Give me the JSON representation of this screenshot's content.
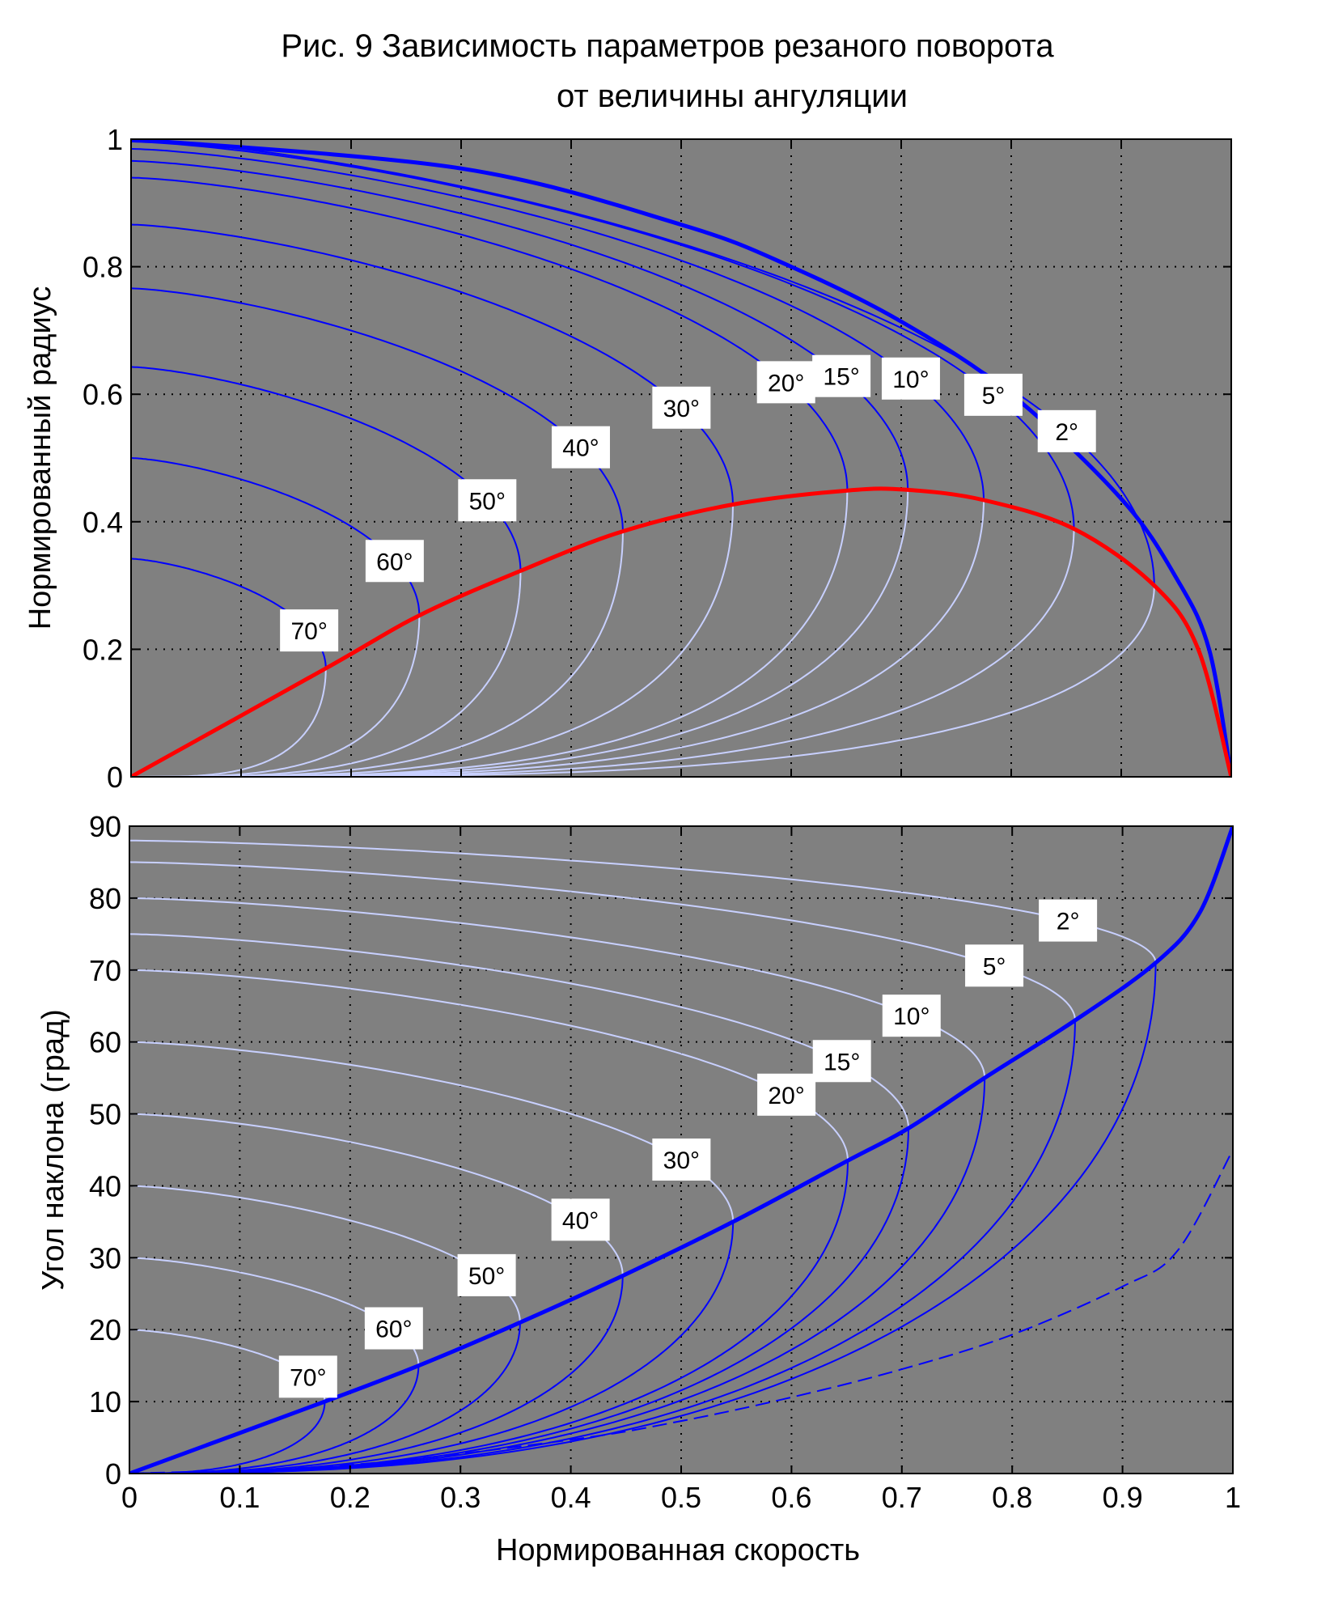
{
  "figure": {
    "title_lines": [
      "Рис. 9  Зависимость параметров резаного поворота",
      "от величины ангуляции"
    ],
    "xlabel": "Нормированная скорость"
  },
  "colors": {
    "plot_background": "#808080",
    "angulation_curve": "#0000ff",
    "sharpness_curve": "#c8d0ff",
    "envelope_blue": "#0000ff",
    "envelope_red": "#ff0000",
    "grid": "#000000",
    "label_box": "#ffffff"
  },
  "chart_data": [
    {
      "type": "line",
      "ylabel": "Нормированный радиус",
      "xlim": [
        0,
        1
      ],
      "ylim": [
        0,
        1
      ],
      "xticks": [
        "0",
        "0.1",
        "0.2",
        "0.3",
        "0.4",
        "0.5",
        "0.6",
        "0.7",
        "0.8",
        "0.9",
        "1"
      ],
      "yticks": [
        "0",
        "0.2",
        "0.4",
        "0.6",
        "0.8",
        "1"
      ],
      "grid": true,
      "angulation_labels": [
        "2°",
        "5°",
        "10°",
        "15°",
        "20°",
        "30°",
        "40°",
        "50°",
        "60°",
        "70°"
      ],
      "angulation_values_deg": [
        2,
        5,
        10,
        15,
        20,
        30,
        40,
        50,
        60,
        70
      ],
      "series": [
        {
          "kind": "envelope",
          "color": "#0000ff",
          "points": [
            [
              0,
              1
            ],
            [
              0.3,
              0.954
            ],
            [
              0.5,
              0.866
            ],
            [
              0.6,
              0.8
            ],
            [
              0.7,
              0.714
            ],
            [
              0.8,
              0.6
            ],
            [
              0.9,
              0.436
            ],
            [
              0.95,
              0.312
            ],
            [
              0.98,
              0.199
            ],
            [
              1,
              0
            ]
          ]
        },
        {
          "kind": "optimum",
          "color": "#ff0000",
          "points": [
            [
              0,
              0
            ],
            [
              0.177,
              0.17
            ],
            [
              0.262,
              0.253
            ],
            [
              0.354,
              0.323
            ],
            [
              0.447,
              0.385
            ],
            [
              0.547,
              0.427
            ],
            [
              0.651,
              0.449
            ],
            [
              0.706,
              0.45
            ],
            [
              0.775,
              0.434
            ],
            [
              0.857,
              0.389
            ],
            [
              0.93,
              0.3
            ],
            [
              0.97,
              0.2
            ],
            [
              1,
              0
            ]
          ]
        }
      ]
    },
    {
      "type": "line",
      "ylabel": "Угол наклона (град)",
      "xlim": [
        0,
        1
      ],
      "ylim": [
        0,
        90
      ],
      "xticks": [
        "0",
        "0.1",
        "0.2",
        "0.3",
        "0.4",
        "0.5",
        "0.6",
        "0.7",
        "0.8",
        "0.9",
        "1"
      ],
      "yticks": [
        "0",
        "10",
        "20",
        "30",
        "40",
        "50",
        "60",
        "70",
        "80",
        "90"
      ],
      "grid": true,
      "angulation_labels": [
        "2°",
        "5°",
        "10°",
        "15°",
        "20°",
        "30°",
        "40°",
        "50°",
        "60°",
        "70°"
      ],
      "angulation_values_deg": [
        2,
        5,
        10,
        15,
        20,
        30,
        40,
        50,
        60,
        70
      ],
      "series": [
        {
          "kind": "optimum",
          "color": "#0000ff",
          "points": [
            [
              0,
              0
            ],
            [
              0.177,
              10
            ],
            [
              0.262,
              15
            ],
            [
              0.354,
              21
            ],
            [
              0.447,
              27.5
            ],
            [
              0.547,
              35
            ],
            [
              0.651,
              43.5
            ],
            [
              0.706,
              48
            ],
            [
              0.775,
              55
            ],
            [
              0.857,
              63
            ],
            [
              0.93,
              71
            ],
            [
              0.97,
              78
            ],
            [
              1,
              90
            ]
          ]
        },
        {
          "kind": "dashed-envelope",
          "color": "#0000ff",
          "points": [
            [
              0,
              0
            ],
            [
              0.2,
              1.2
            ],
            [
              0.4,
              4.7
            ],
            [
              0.5,
              7.3
            ],
            [
              0.6,
              10.6
            ],
            [
              0.7,
              14.5
            ],
            [
              0.8,
              19.3
            ],
            [
              0.9,
              26
            ],
            [
              0.95,
              31
            ],
            [
              1,
              45
            ]
          ]
        }
      ]
    }
  ]
}
